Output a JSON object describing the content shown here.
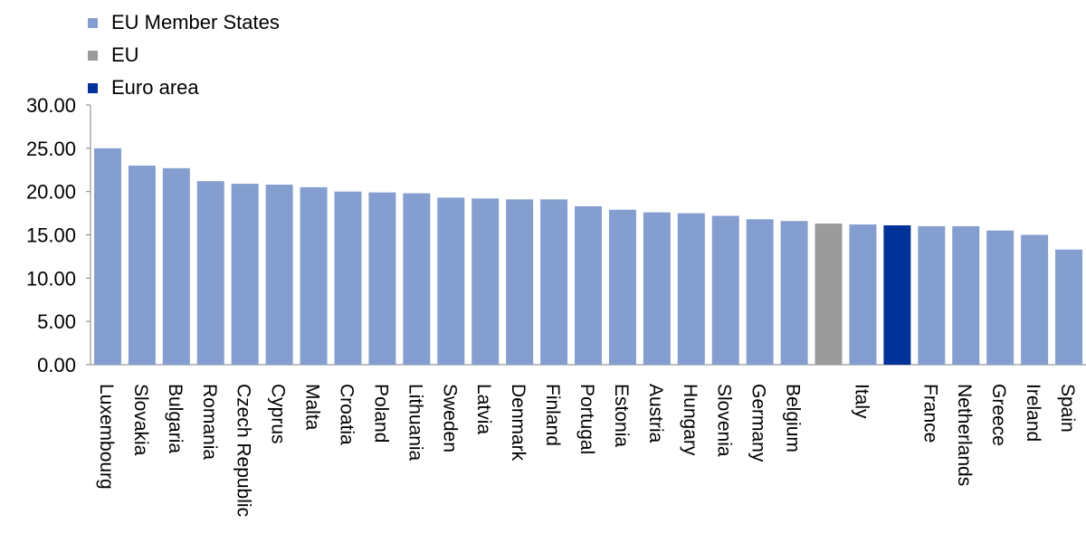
{
  "chart_data": {
    "type": "bar",
    "title": "",
    "xlabel": "",
    "ylabel": "",
    "ylim": [
      0,
      30
    ],
    "y_ticks": [
      "0.00",
      "5.00",
      "10.00",
      "15.00",
      "20.00",
      "25.00",
      "30.00"
    ],
    "grid": false,
    "legend_position": "top-left",
    "series": [
      {
        "name": "EU Member States",
        "color": "#849FCF"
      },
      {
        "name": "EU",
        "color": "#9B9B9B"
      },
      {
        "name": "Euro area",
        "color": "#003399"
      }
    ],
    "categories": [
      "Luxembourg",
      "Slovakia",
      "Bulgaria",
      "Romania",
      "Czech Republic",
      "Cyprus",
      "Malta",
      "Croatia",
      "Poland",
      "Lithuania",
      "Sweden",
      "Latvia",
      "Denmark",
      "Finland",
      "Portugal",
      "Estonia",
      "Austria",
      "Hungary",
      "Slovenia",
      "Germany",
      "Belgium",
      "",
      "Italy",
      "",
      "France",
      "Netherlands",
      "Greece",
      "Ireland",
      "Spain"
    ],
    "values": [
      25.0,
      23.0,
      22.7,
      21.2,
      20.9,
      20.8,
      20.5,
      20.0,
      19.9,
      19.8,
      19.3,
      19.2,
      19.1,
      19.1,
      18.3,
      17.9,
      17.6,
      17.5,
      17.2,
      16.8,
      16.6,
      16.3,
      16.2,
      16.1,
      16.0,
      16.0,
      15.5,
      15.0,
      13.3
    ],
    "bar_series": [
      0,
      0,
      0,
      0,
      0,
      0,
      0,
      0,
      0,
      0,
      0,
      0,
      0,
      0,
      0,
      0,
      0,
      0,
      0,
      0,
      0,
      1,
      0,
      2,
      0,
      0,
      0,
      0,
      0
    ]
  }
}
